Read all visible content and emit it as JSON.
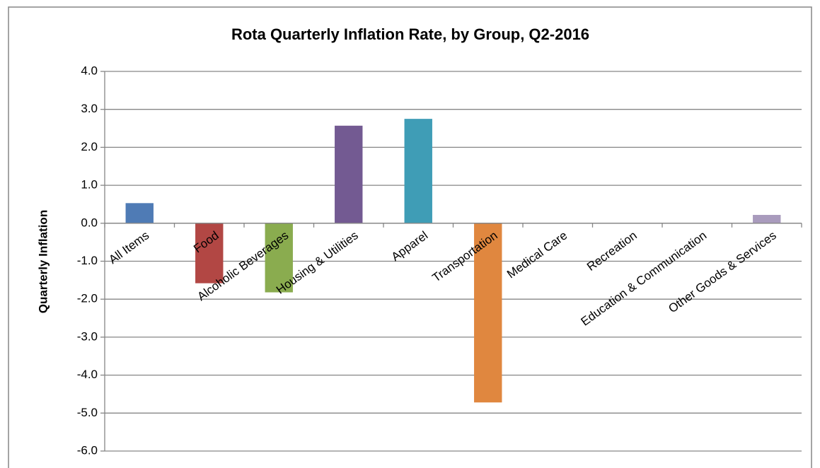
{
  "chart_data": {
    "type": "bar",
    "title": "Rota Quarterly Inflation Rate, by Group, Q2-2016",
    "y_label": "Quarterly Inflation",
    "categories": [
      "All Items",
      "Food",
      "Alcoholic Beverages",
      "Housing & Utilities",
      "Apparel",
      "Transportation",
      "Medical Care",
      "Recreation",
      "Education & Communication",
      "Other Goods & Services"
    ],
    "values": [
      0.53,
      -1.58,
      -1.82,
      2.57,
      2.75,
      -4.72,
      0,
      0,
      0,
      0.22
    ],
    "colors": [
      "#4f7bb5",
      "#b24744",
      "#8aac4f",
      "#735a92",
      "#3f9db6",
      "#e0873f",
      "#93a9cf",
      "#d19392",
      "#b9cd96",
      "#a99bbd"
    ],
    "ylim": [
      -6,
      4
    ],
    "yticks": [
      {
        "value": -6,
        "label": "-6.0"
      },
      {
        "value": -5,
        "label": "-5.0"
      },
      {
        "value": -4,
        "label": "-4.0"
      },
      {
        "value": -3,
        "label": "-3.0"
      },
      {
        "value": -2,
        "label": "-2.0"
      },
      {
        "value": -1,
        "label": "-1.0"
      },
      {
        "value": 0,
        "label": "0.0"
      },
      {
        "value": 1,
        "label": "1.0"
      },
      {
        "value": 2,
        "label": "2.0"
      },
      {
        "value": 3,
        "label": "3.0"
      },
      {
        "value": 4,
        "label": "4.0"
      }
    ],
    "grid": true
  }
}
